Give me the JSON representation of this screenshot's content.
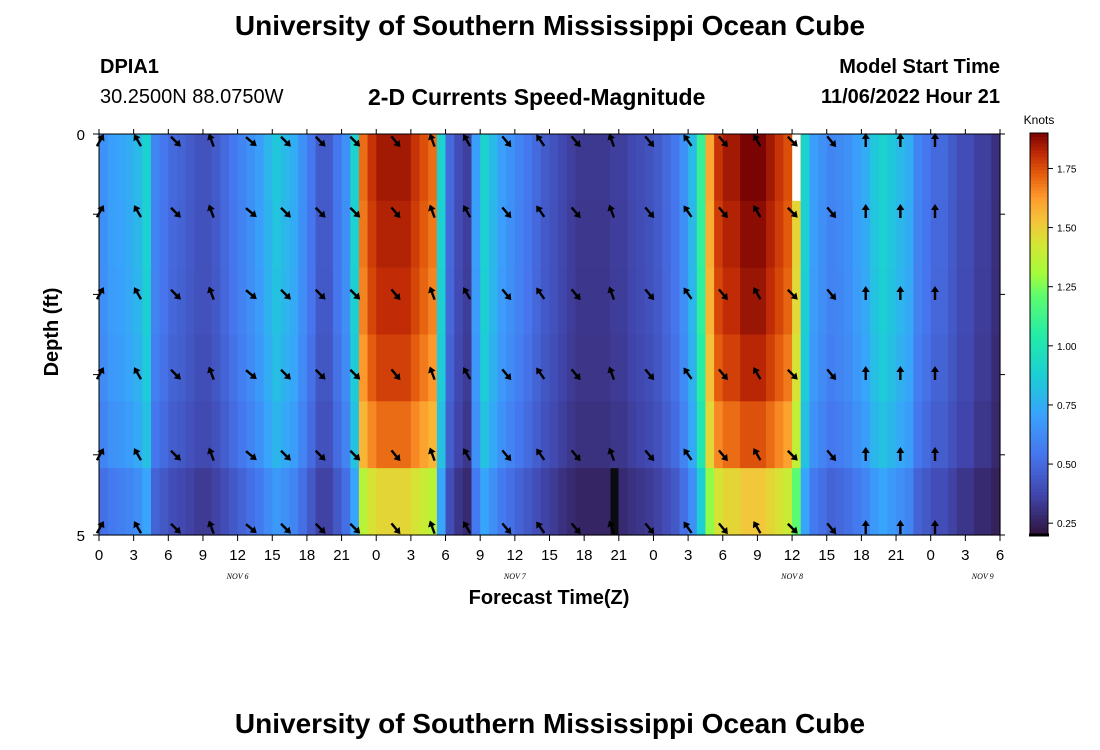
{
  "title": "University of Southern Mississippi Ocean Cube",
  "footer_title": "University of Southern Mississippi Ocean Cube",
  "station": {
    "id": "DPIA1",
    "coords": "30.2500N  88.0750W"
  },
  "subtitle": "2-D Currents Speed-Magnitude",
  "model_start": {
    "label": "Model Start Time",
    "value": "11/06/2022 Hour 21"
  },
  "chart_data": {
    "type": "heatmap",
    "title": "2-D Currents Speed-Magnitude",
    "xlabel": "Forecast Time(Z)",
    "ylabel": "Depth (ft)",
    "x_tick_labels": [
      "0",
      "3",
      "6",
      "9",
      "12",
      "15",
      "18",
      "21",
      "0",
      "3",
      "6",
      "9",
      "12",
      "15",
      "18",
      "21",
      "0",
      "3",
      "6",
      "9",
      "12",
      "15",
      "18",
      "21",
      "0",
      "3",
      "6"
    ],
    "date_labels": [
      {
        "label": "NOV 6",
        "at_tick": 4
      },
      {
        "label": "NOV 7",
        "at_tick": 12
      },
      {
        "label": "NOV 8",
        "at_tick": 20
      },
      {
        "label": "NOV 9",
        "at_tick": 25.5
      }
    ],
    "y_tick_labels": [
      "0",
      "5"
    ],
    "ylim": [
      0,
      5
    ],
    "colorbar": {
      "title": "Knots",
      "range": [
        0.2,
        1.9
      ],
      "ticks": [
        0.25,
        0.5,
        0.75,
        1.0,
        1.25,
        1.5,
        1.75
      ],
      "tick_labels": [
        "0.25",
        "0.50",
        "0.75",
        "1.00",
        "1.25",
        "1.50",
        "1.75"
      ]
    },
    "speed_by_time_knots": [
      0.65,
      0.7,
      0.72,
      0.75,
      0.8,
      0.9,
      0.6,
      0.55,
      0.5,
      0.48,
      0.45,
      0.42,
      0.42,
      0.45,
      0.5,
      0.55,
      0.6,
      0.65,
      0.7,
      0.78,
      0.85,
      0.8,
      0.75,
      0.65,
      0.55,
      0.45,
      0.45,
      0.55,
      0.65,
      0.9,
      1.7,
      1.8,
      1.85,
      1.85,
      1.85,
      1.85,
      1.8,
      1.75,
      1.7,
      0.9,
      0.5,
      0.4,
      0.35,
      0.7,
      0.9,
      0.8,
      0.7,
      0.65,
      0.6,
      0.55,
      0.5,
      0.45,
      0.42,
      0.38,
      0.35,
      0.33,
      0.33,
      0.33,
      0.33,
      0.35,
      0.35,
      0.38,
      0.4,
      0.42,
      0.45,
      0.5,
      0.55,
      0.65,
      0.8,
      1.1,
      1.6,
      1.8,
      1.85,
      1.85,
      1.9,
      1.9,
      1.9,
      1.85,
      1.8,
      1.75,
      1.5,
      0.9,
      0.7,
      0.65,
      0.6,
      0.62,
      0.65,
      0.7,
      0.75,
      0.85,
      0.9,
      0.85,
      0.8,
      0.75,
      0.6,
      0.55,
      0.5,
      0.5,
      0.45,
      0.4,
      0.4,
      0.35,
      0.35,
      0.3
    ],
    "depth_factors": [
      1.0,
      0.99,
      0.98,
      0.96,
      0.92,
      0.8
    ],
    "arrow_times": [
      0.1,
      4.5,
      8.8,
      13,
      17.5,
      21.5,
      25.5,
      29.5,
      34.2,
      38.5,
      42.5,
      47,
      51,
      55,
      59.2,
      63.5,
      68,
      72,
      76,
      80,
      84.5,
      88.5,
      92.5,
      96.5
    ],
    "arrow_angles_deg": [
      30,
      -30,
      135,
      -20,
      130,
      135,
      135,
      135,
      140,
      -20,
      -30,
      140,
      -35,
      140,
      -20,
      140,
      -35,
      140,
      -30,
      135,
      140,
      0,
      0,
      0
    ],
    "masked_cells": [
      {
        "t": 80.5,
        "depth_row": 0,
        "color": "#ffffff"
      },
      {
        "t": 59.5,
        "depth_row": 5,
        "color": "#0b0b12"
      }
    ]
  }
}
